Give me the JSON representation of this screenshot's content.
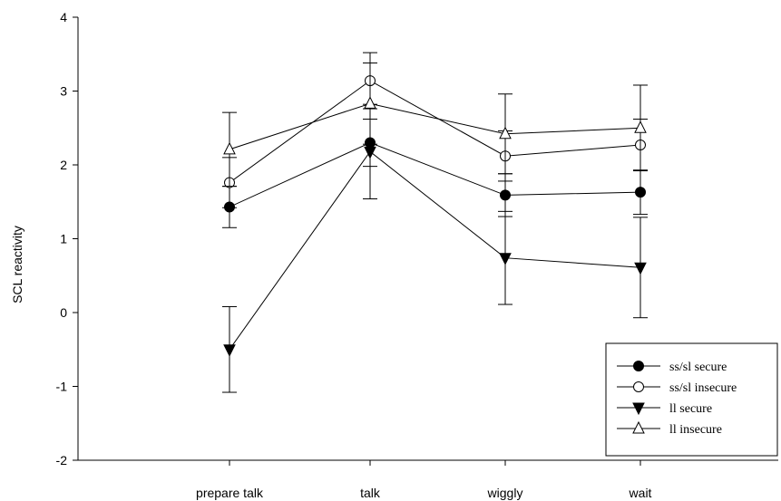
{
  "chart_data": {
    "type": "line",
    "title": "",
    "xlabel": "",
    "ylabel": "SCL reactivity",
    "categories": [
      "prepare talk",
      "talk",
      "wiggly",
      "wait"
    ],
    "ylim": [
      -2,
      4
    ],
    "yticks": [
      -2,
      -1,
      0,
      1,
      2,
      3,
      4
    ],
    "grid": false,
    "legend_position": "bottom-right",
    "series": [
      {
        "name": "ss/sl secure",
        "marker": "filled-circle",
        "values": [
          1.43,
          2.3,
          1.59,
          1.63
        ],
        "error": [
          0.28,
          0.32,
          0.29,
          0.3
        ]
      },
      {
        "name": "ss/sl insecure",
        "marker": "open-circle",
        "values": [
          1.76,
          3.14,
          2.12,
          2.27
        ],
        "error": [
          0.34,
          0.38,
          0.34,
          0.35
        ]
      },
      {
        "name": "ll secure",
        "marker": "filled-triangle-down",
        "values": [
          -0.5,
          2.18,
          0.74,
          0.61
        ],
        "error": [
          0.58,
          0.64,
          0.63,
          0.68
        ]
      },
      {
        "name": "ll insecure",
        "marker": "open-triangle-up",
        "values": [
          2.21,
          2.83,
          2.42,
          2.5
        ],
        "error": [
          0.5,
          0.55,
          0.54,
          0.58
        ]
      }
    ]
  }
}
